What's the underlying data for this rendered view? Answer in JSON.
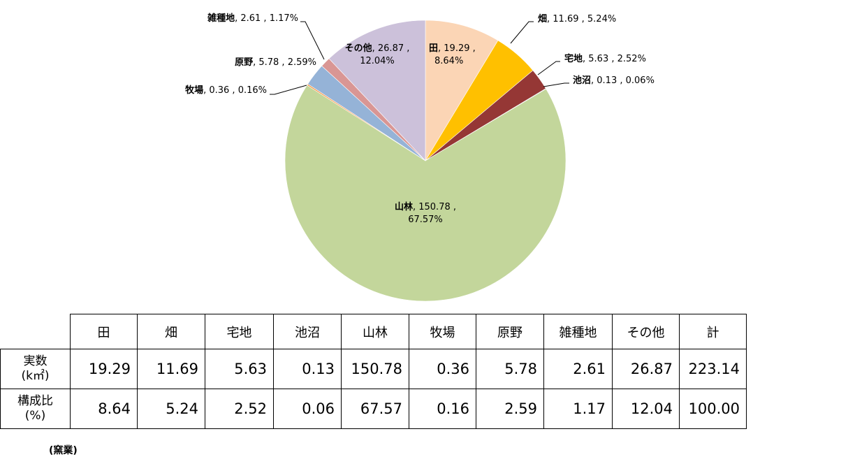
{
  "chart_data": {
    "type": "pie",
    "title": "",
    "slices": [
      {
        "category": "田",
        "value": 19.29,
        "percent": "8.64%",
        "color": "#FBD5B5"
      },
      {
        "category": "畑",
        "value": 11.69,
        "percent": "5.24%",
        "color": "#FFC000"
      },
      {
        "category": "宅地",
        "value": 5.63,
        "percent": "2.52%",
        "color": "#953735"
      },
      {
        "category": "池沼",
        "value": 0.13,
        "percent": "0.06%",
        "color": "#4BACC6"
      },
      {
        "category": "山林",
        "value": 150.78,
        "percent": "67.57%",
        "color": "#C3D69B"
      },
      {
        "category": "牧場",
        "value": 0.36,
        "percent": "0.16%",
        "color": "#F79646"
      },
      {
        "category": "原野",
        "value": 5.78,
        "percent": "2.59%",
        "color": "#95B3D7"
      },
      {
        "category": "雑種地",
        "value": 2.61,
        "percent": "1.17%",
        "color": "#D99694"
      },
      {
        "category": "その他",
        "value": 26.87,
        "percent": "12.04%",
        "color": "#CCC1DA"
      }
    ]
  },
  "table": {
    "headers": [
      "田",
      "畑",
      "宅地",
      "池沼",
      "山林",
      "牧場",
      "原野",
      "雑種地",
      "その他",
      "計"
    ],
    "rows": [
      {
        "label_line1": "実数",
        "label_line2": "(k㎡)",
        "values": [
          "19.29",
          "11.69",
          "5.63",
          "0.13",
          "150.78",
          "0.36",
          "5.78",
          "2.61",
          "26.87",
          "223.14"
        ]
      },
      {
        "label_line1": "構成比",
        "label_line2": "(%)",
        "values": [
          "8.64",
          "5.24",
          "2.52",
          "0.06",
          "67.57",
          "0.16",
          "2.59",
          "1.17",
          "12.04",
          "100.00"
        ]
      }
    ]
  },
  "footnote": "(窯業)"
}
